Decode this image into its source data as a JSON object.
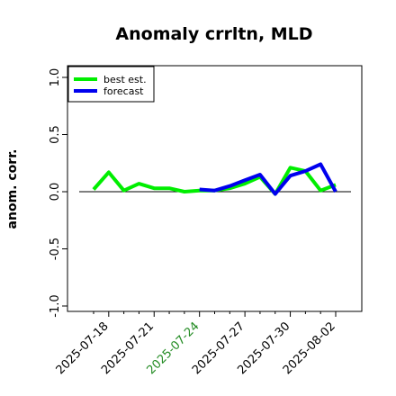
{
  "chart_data": {
    "type": "line",
    "title": "Anomaly crrltn, MLD",
    "xlabel": "",
    "ylabel": "anom. corr.",
    "ylim": [
      -1.0,
      1.0
    ],
    "yticks": [
      "-1.0",
      "-0.5",
      "0.0",
      "0.5",
      "1.0"
    ],
    "yticks_values": [
      -1.0,
      -0.5,
      0.0,
      0.5,
      1.0
    ],
    "x": [
      "2025-07-17",
      "2025-07-18",
      "2025-07-19",
      "2025-07-20",
      "2025-07-21",
      "2025-07-22",
      "2025-07-23",
      "2025-07-24",
      "2025-07-25",
      "2025-07-26",
      "2025-07-27",
      "2025-07-28",
      "2025-07-29",
      "2025-07-30",
      "2025-07-31",
      "2025-08-01",
      "2025-08-02"
    ],
    "xticks": [
      "2025-07-18",
      "2025-07-21",
      "2025-07-24",
      "2025-07-27",
      "2025-07-30",
      "2025-08-02"
    ],
    "highlighted_xtick": "2025-07-24",
    "zero_line": true,
    "grid": false,
    "legend_position": "top-left",
    "series": [
      {
        "name": "best est.",
        "color": "#00ee00",
        "values": [
          0.02,
          0.17,
          0.01,
          0.07,
          0.03,
          0.03,
          0.0,
          0.01,
          0.01,
          0.03,
          0.07,
          0.13,
          -0.02,
          0.21,
          0.18,
          0.01,
          0.06
        ]
      },
      {
        "name": "forecast",
        "color": "#0000ee",
        "values": [
          null,
          null,
          null,
          null,
          null,
          null,
          null,
          0.02,
          0.01,
          0.05,
          0.1,
          0.15,
          -0.02,
          0.14,
          0.18,
          0.24,
          0.0
        ]
      }
    ],
    "colors": {
      "axis": "#000000",
      "zero_line": "#000000",
      "highlight_tick": "#228b22",
      "tick_text": "#000000"
    }
  }
}
